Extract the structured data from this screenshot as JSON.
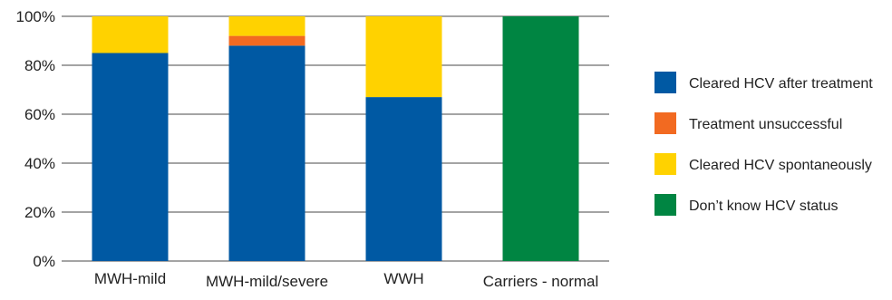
{
  "chart_data": {
    "type": "bar",
    "stacked": true,
    "categories": [
      "MWH-mild",
      "MWH-mild/severe",
      "WWH",
      "Carriers - normal"
    ],
    "series": [
      {
        "name": "Cleared HCV after treatment",
        "color": "#0059A3",
        "values": [
          85,
          88,
          67,
          0
        ]
      },
      {
        "name": "Treatment unsuccessful",
        "color": "#F26A21",
        "values": [
          0,
          4,
          0,
          0
        ]
      },
      {
        "name": "Cleared HCV spontaneously",
        "color": "#FFD200",
        "values": [
          15,
          8,
          33,
          0
        ]
      },
      {
        "name": "Don’t know HCV status",
        "color": "#008542",
        "values": [
          0,
          0,
          0,
          100
        ]
      }
    ],
    "ylim": [
      0,
      100
    ],
    "yticks": [
      "0%",
      "20%",
      "40%",
      "60%",
      "80%",
      "100%"
    ],
    "ytick_values": [
      0,
      20,
      40,
      60,
      80,
      100
    ],
    "grid": true,
    "legend": "right",
    "title": "",
    "xlabel": "",
    "ylabel": ""
  }
}
